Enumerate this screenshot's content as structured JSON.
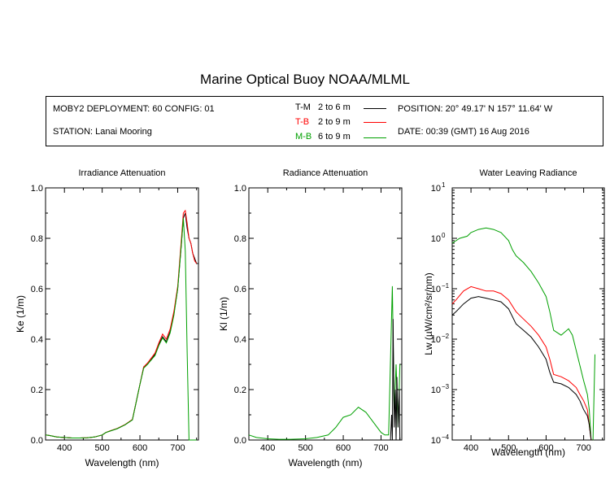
{
  "title": "Marine Optical Buoy NOAA/MLML",
  "info": {
    "deployment": "MOBY2 DEPLOYMENT: 60 CONFIG: 01",
    "station": "STATION: Lanai Mooring",
    "position": "POSITION: 20° 49.17' N   157° 11.64' W",
    "date": "DATE: 00:39 (GMT) 16 Aug 2016"
  },
  "colors": {
    "T-M": "#000000",
    "T-B": "#ff0000",
    "M-B": "#00a000"
  },
  "legend": [
    {
      "key": "T-M",
      "range": "2 to 6  m",
      "color": "#000000"
    },
    {
      "key": "T-B",
      "range": "2 to 9  m",
      "color": "#ff0000"
    },
    {
      "key": "M-B",
      "range": "6 to 9  m",
      "color": "#00a000"
    }
  ],
  "chart_data": [
    {
      "type": "line",
      "title": "Irradiance Attenuation",
      "xlabel": "Wavelength (nm)",
      "ylabel": "Ke  (1/m)",
      "xlim": [
        350,
        755
      ],
      "ylim": [
        0,
        1
      ],
      "xticks": [
        400,
        500,
        600,
        700
      ],
      "yticks": [
        0.0,
        0.2,
        0.4,
        0.6,
        0.8,
        1.0
      ],
      "ytick_labels": [
        "0.0",
        "0.2",
        "0.4",
        "0.6",
        "0.8",
        "1.0"
      ],
      "yscale": "linear",
      "series": [
        {
          "key": "T-M",
          "color": "#000000",
          "x": [
            350,
            360,
            380,
            400,
            420,
            440,
            460,
            480,
            500,
            510,
            520,
            540,
            560,
            580,
            590,
            600,
            610,
            620,
            640,
            650,
            660,
            670,
            680,
            690,
            700,
            710,
            715,
            720,
            725,
            730,
            735,
            740,
            745,
            750
          ],
          "y": [
            0.02,
            0.018,
            0.012,
            0.01,
            0.008,
            0.008,
            0.009,
            0.012,
            0.02,
            0.03,
            0.035,
            0.045,
            0.06,
            0.08,
            0.15,
            0.22,
            0.29,
            0.3,
            0.34,
            0.38,
            0.41,
            0.39,
            0.43,
            0.5,
            0.6,
            0.78,
            0.88,
            0.9,
            0.84,
            0.8,
            0.78,
            0.74,
            0.72,
            0.7
          ]
        },
        {
          "key": "T-B",
          "color": "#ff0000",
          "x": [
            350,
            360,
            380,
            400,
            420,
            440,
            460,
            480,
            500,
            510,
            520,
            540,
            560,
            580,
            590,
            600,
            610,
            620,
            640,
            650,
            660,
            670,
            680,
            690,
            700,
            710,
            715,
            720,
            725,
            730,
            735,
            740,
            745,
            750
          ],
          "y": [
            0.02,
            0.018,
            0.012,
            0.01,
            0.008,
            0.008,
            0.009,
            0.012,
            0.02,
            0.03,
            0.036,
            0.046,
            0.061,
            0.082,
            0.15,
            0.22,
            0.29,
            0.305,
            0.345,
            0.385,
            0.42,
            0.4,
            0.44,
            0.51,
            0.61,
            0.8,
            0.9,
            0.91,
            0.86,
            0.8,
            0.78,
            0.74,
            0.71,
            0.7
          ]
        },
        {
          "key": "M-B",
          "color": "#00a000",
          "x": [
            350,
            360,
            380,
            400,
            420,
            440,
            460,
            480,
            500,
            510,
            520,
            540,
            560,
            580,
            590,
            600,
            610,
            620,
            640,
            650,
            660,
            670,
            680,
            690,
            700,
            710,
            715,
            720,
            725,
            730,
            740,
            750
          ],
          "y": [
            0.02,
            0.018,
            0.012,
            0.01,
            0.008,
            0.008,
            0.009,
            0.012,
            0.02,
            0.03,
            0.035,
            0.045,
            0.06,
            0.08,
            0.15,
            0.22,
            0.285,
            0.3,
            0.335,
            0.375,
            0.405,
            0.385,
            0.425,
            0.495,
            0.6,
            0.78,
            0.88,
            0.75,
            0.35,
            0.0,
            0.0,
            0.0
          ]
        }
      ]
    },
    {
      "type": "line",
      "title": "Radiance Attenuation",
      "xlabel": "Wavelength (nm)",
      "ylabel": "Kl  (1/m)",
      "xlim": [
        350,
        755
      ],
      "ylim": [
        0,
        1
      ],
      "xticks": [
        400,
        500,
        600,
        700
      ],
      "yticks": [
        0.0,
        0.2,
        0.4,
        0.6,
        0.8,
        1.0
      ],
      "ytick_labels": [
        "0.0",
        "0.2",
        "0.4",
        "0.6",
        "0.8",
        "1.0"
      ],
      "yscale": "linear",
      "series": [
        {
          "key": "M-B",
          "color": "#00a000",
          "x": [
            350,
            370,
            400,
            430,
            460,
            500,
            530,
            560,
            580,
            600,
            620,
            640,
            660,
            680,
            700,
            710,
            720,
            730,
            735,
            740,
            745,
            750
          ],
          "y": [
            0.02,
            0.01,
            0.005,
            0.003,
            0.003,
            0.005,
            0.01,
            0.02,
            0.05,
            0.09,
            0.1,
            0.13,
            0.11,
            0.07,
            0.03,
            0.02,
            0.02,
            0.61,
            0.1,
            0.3,
            0.05,
            0.3
          ]
        },
        {
          "key": "T-M",
          "color": "#000000",
          "x": [
            725,
            728,
            730,
            732,
            735,
            738,
            740,
            742,
            745,
            748,
            750
          ],
          "y": [
            0.0,
            0.1,
            0.0,
            0.48,
            0.05,
            0.2,
            0.0,
            0.25,
            0.05,
            0.2,
            0.0
          ]
        }
      ]
    },
    {
      "type": "line",
      "title": "Water Leaving Radiance",
      "xlabel": "Wavelength (nm)",
      "ylabel": "Lw  (µW/cm²/sr/nm)",
      "xlim": [
        350,
        755
      ],
      "ylim": [
        0.0001,
        10
      ],
      "yscale": "log",
      "xticks": [
        400,
        500,
        600,
        700
      ],
      "yticks": [
        0.0001,
        0.001,
        0.01,
        0.1,
        1,
        10
      ],
      "series": [
        {
          "key": "M-B",
          "color": "#00a000",
          "x": [
            350,
            370,
            390,
            400,
            420,
            440,
            460,
            480,
            500,
            510,
            520,
            540,
            560,
            580,
            600,
            610,
            620,
            640,
            660,
            670,
            680,
            690,
            700,
            710,
            715,
            720,
            725,
            730
          ],
          "y": [
            0.8,
            1.0,
            1.1,
            1.3,
            1.5,
            1.6,
            1.5,
            1.3,
            0.9,
            0.6,
            0.45,
            0.33,
            0.22,
            0.13,
            0.07,
            0.035,
            0.015,
            0.012,
            0.016,
            0.012,
            0.006,
            0.003,
            0.0015,
            0.0008,
            0.0004,
            0.0001,
            0.0001,
            0.005
          ]
        },
        {
          "key": "T-B",
          "color": "#ff0000",
          "x": [
            350,
            360,
            380,
            400,
            420,
            440,
            460,
            480,
            500,
            520,
            540,
            560,
            580,
            600,
            610,
            620,
            640,
            660,
            680,
            690,
            700,
            710,
            715,
            720,
            725
          ],
          "y": [
            0.05,
            0.06,
            0.09,
            0.11,
            0.1,
            0.09,
            0.09,
            0.08,
            0.06,
            0.035,
            0.025,
            0.018,
            0.012,
            0.007,
            0.004,
            0.002,
            0.0018,
            0.0015,
            0.0011,
            0.0008,
            0.0006,
            0.0004,
            0.0002,
            0.0001,
            0.0001
          ]
        },
        {
          "key": "T-M",
          "color": "#000000",
          "x": [
            350,
            360,
            380,
            400,
            420,
            440,
            460,
            480,
            500,
            520,
            540,
            560,
            580,
            600,
            610,
            620,
            640,
            660,
            680,
            690,
            700,
            710,
            715,
            720,
            725
          ],
          "y": [
            0.03,
            0.035,
            0.05,
            0.065,
            0.07,
            0.065,
            0.06,
            0.055,
            0.04,
            0.02,
            0.015,
            0.011,
            0.007,
            0.004,
            0.0022,
            0.0014,
            0.0013,
            0.0011,
            0.0008,
            0.0006,
            0.0004,
            0.0003,
            0.0002,
            0.0001,
            0.0001
          ]
        }
      ]
    }
  ]
}
